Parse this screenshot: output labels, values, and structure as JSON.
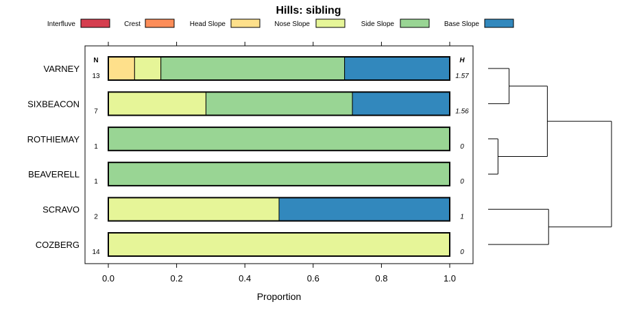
{
  "chart_data": {
    "type": "bar",
    "orientation": "horizontal",
    "stacked": true,
    "title": "Hills: sibling",
    "xlabel": "Proportion",
    "ylabel": "",
    "xlim": [
      0,
      1
    ],
    "x_ticks": [
      "0.0",
      "0.2",
      "0.4",
      "0.6",
      "0.8",
      "1.0"
    ],
    "x_tick_values": [
      0,
      0.2,
      0.4,
      0.6,
      0.8,
      1.0
    ],
    "n_header": "N",
    "h_header": "H",
    "legend": [
      {
        "name": "Interfluve",
        "color": "#D53E4F"
      },
      {
        "name": "Crest",
        "color": "#FC8D59"
      },
      {
        "name": "Head Slope",
        "color": "#FEE08B"
      },
      {
        "name": "Nose Slope",
        "color": "#E6F598"
      },
      {
        "name": "Side Slope",
        "color": "#99D594"
      },
      {
        "name": "Base Slope",
        "color": "#3288BD"
      }
    ],
    "categories": [
      "VARNEY",
      "SIXBEACON",
      "ROTHIEMAY",
      "BEAVERELL",
      "SCRAVO",
      "COZBERG"
    ],
    "n_values": [
      "13",
      "7",
      "1",
      "1",
      "2",
      "14"
    ],
    "h_values": [
      "1.57",
      "1.56",
      "0",
      "0",
      "1",
      "0"
    ],
    "series": [
      {
        "name": "Interfluve",
        "values": [
          0,
          0,
          0,
          0,
          0,
          0
        ]
      },
      {
        "name": "Crest",
        "values": [
          0,
          0,
          0,
          0,
          0,
          0
        ]
      },
      {
        "name": "Head Slope",
        "values": [
          0.077,
          0,
          0,
          0,
          0,
          0
        ]
      },
      {
        "name": "Nose Slope",
        "values": [
          0.077,
          0.286,
          0,
          0,
          0.5,
          1.0
        ]
      },
      {
        "name": "Side Slope",
        "values": [
          0.538,
          0.429,
          1.0,
          1.0,
          0,
          0
        ]
      },
      {
        "name": "Base Slope",
        "values": [
          0.308,
          0.286,
          0,
          0,
          0.5,
          0
        ]
      }
    ],
    "dendrogram": {
      "merges": [
        [
          "VARNEY",
          "SIXBEACON"
        ],
        [
          "ROTHIEMAY",
          "BEAVERELL"
        ],
        [
          "SCRAVO",
          "COZBERG"
        ],
        [
          "VARNEY+SIXBEACON",
          "ROTHIEMAY+BEAVERELL"
        ],
        [
          "top",
          "SCRAVO+COZBERG"
        ]
      ],
      "heights": [
        0.17,
        0.08,
        0.49,
        0.48,
        1.0
      ]
    }
  }
}
